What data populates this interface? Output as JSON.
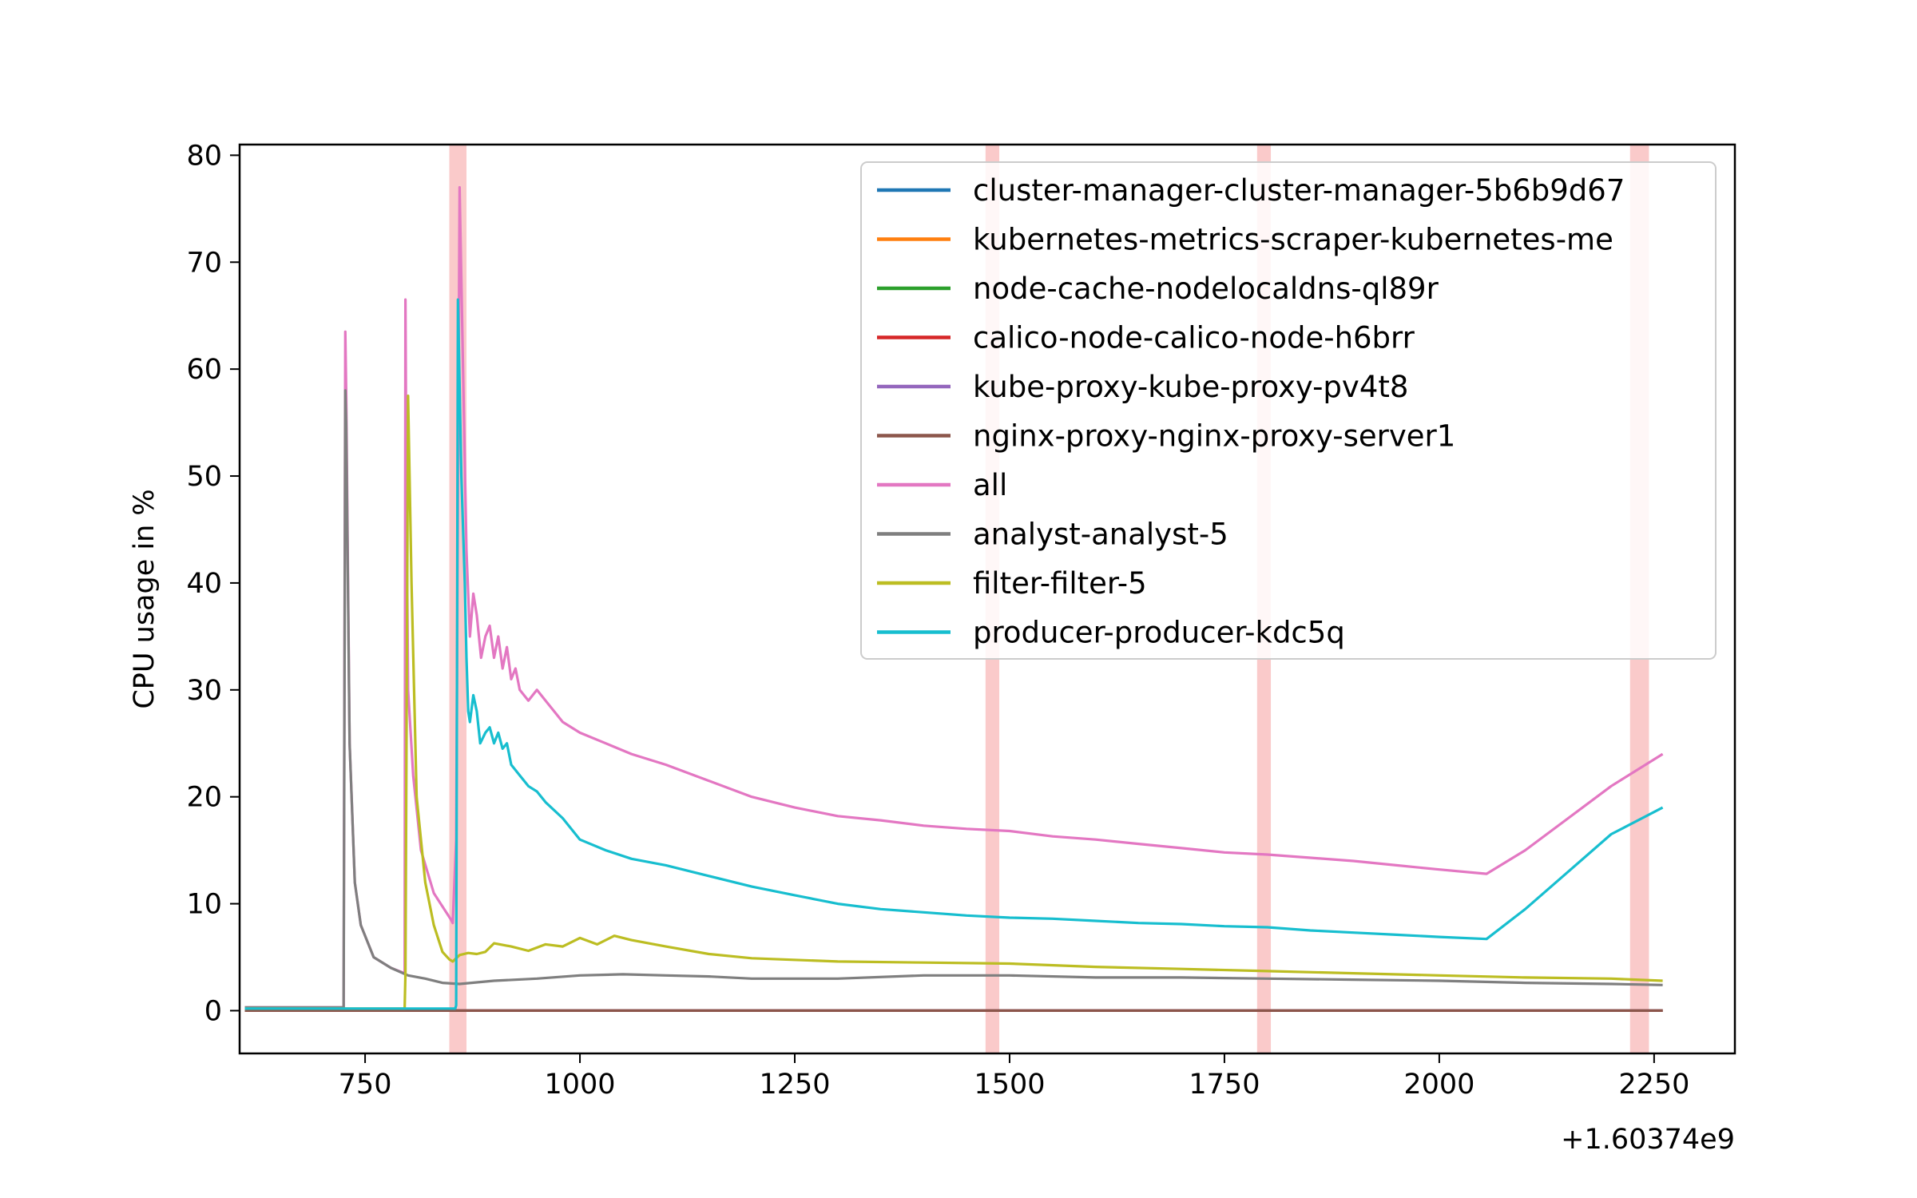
{
  "chart_data": {
    "type": "line",
    "title": "",
    "xlabel": "",
    "ylabel": "CPU usage in %",
    "x_offset_label": "+1.60374e9",
    "xlim": [
      604,
      2344
    ],
    "ylim": [
      -4,
      81
    ],
    "xticks": [
      750,
      1000,
      1250,
      1500,
      1750,
      2000,
      2250
    ],
    "yticks": [
      0,
      10,
      20,
      30,
      40,
      50,
      60,
      70,
      80
    ],
    "grid": false,
    "legend_position": "upper right",
    "highlight_color": "#f7a6a6",
    "highlight_bands": [
      [
        848,
        868
      ],
      [
        1472,
        1488
      ],
      [
        1788,
        1804
      ],
      [
        2222,
        2244
      ]
    ],
    "series": [
      {
        "name": "cluster-manager-cluster-manager-5b6b9d67",
        "color": "#1f77b4",
        "x": [
          610,
          2260
        ],
        "y": [
          0.0,
          0.0
        ]
      },
      {
        "name": "kubernetes-metrics-scraper-kubernetes-me",
        "color": "#ff7f0e",
        "x": [
          610,
          2260
        ],
        "y": [
          0.0,
          0.0
        ]
      },
      {
        "name": "node-cache-nodelocaldns-ql89r",
        "color": "#2ca02c",
        "x": [
          610,
          2260
        ],
        "y": [
          0.0,
          0.0
        ]
      },
      {
        "name": "calico-node-calico-node-h6brr",
        "color": "#d62728",
        "x": [
          610,
          2260
        ],
        "y": [
          0.0,
          0.0
        ]
      },
      {
        "name": "kube-proxy-kube-proxy-pv4t8",
        "color": "#9467bd",
        "x": [
          610,
          2260
        ],
        "y": [
          0.0,
          0.0
        ]
      },
      {
        "name": "nginx-proxy-nginx-proxy-server1",
        "color": "#8c564b",
        "x": [
          610,
          2260
        ],
        "y": [
          0.0,
          0.0
        ]
      },
      {
        "name": "all",
        "color": "#e377c2",
        "x": [
          610,
          725,
          727,
          728,
          732,
          738,
          745,
          760,
          780,
          796,
          797,
          798,
          800,
          806,
          815,
          830,
          850,
          852,
          856,
          860,
          864,
          868,
          872,
          876,
          880,
          885,
          890,
          895,
          900,
          905,
          910,
          915,
          920,
          925,
          930,
          940,
          950,
          960,
          980,
          1000,
          1030,
          1060,
          1100,
          1150,
          1200,
          1250,
          1300,
          1350,
          1400,
          1450,
          1500,
          1550,
          1600,
          1650,
          1700,
          1750,
          1800,
          1850,
          1900,
          1950,
          2000,
          2055,
          2100,
          2150,
          2200,
          2260
        ],
        "y": [
          0.3,
          0.3,
          63.5,
          58,
          25,
          12,
          8,
          5,
          4,
          3.5,
          66.5,
          50,
          30,
          22,
          15,
          11,
          8.5,
          8.2,
          16,
          77,
          60,
          43,
          35,
          39,
          37,
          33,
          35,
          36,
          33,
          35,
          32,
          34,
          31,
          32,
          30,
          29,
          30,
          29,
          27,
          26,
          25,
          24,
          23,
          21.5,
          20,
          19,
          18.2,
          17.8,
          17.3,
          17,
          16.8,
          16.3,
          16,
          15.6,
          15.2,
          14.8,
          14.6,
          14.3,
          14,
          13.6,
          13.2,
          12.8,
          15,
          18,
          21,
          24
        ]
      },
      {
        "name": "analyst-analyst-5",
        "color": "#7f7f7f",
        "x": [
          610,
          725,
          727,
          728,
          732,
          738,
          745,
          760,
          780,
          800,
          820,
          840,
          860,
          900,
          950,
          1000,
          1050,
          1100,
          1150,
          1200,
          1300,
          1400,
          1500,
          1600,
          1700,
          1800,
          1900,
          2000,
          2100,
          2200,
          2260
        ],
        "y": [
          0.3,
          0.3,
          58,
          55,
          25,
          12,
          8,
          5,
          4,
          3.3,
          3,
          2.6,
          2.5,
          2.8,
          3,
          3.3,
          3.4,
          3.3,
          3.2,
          3.0,
          3.0,
          3.3,
          3.3,
          3.1,
          3.1,
          3.0,
          2.9,
          2.8,
          2.6,
          2.5,
          2.4
        ]
      },
      {
        "name": "filter-filter-5",
        "color": "#bcbd22",
        "x": [
          610,
          796,
          797,
          800,
          804,
          810,
          820,
          830,
          840,
          848,
          852,
          860,
          870,
          880,
          890,
          900,
          920,
          940,
          960,
          980,
          1000,
          1020,
          1040,
          1060,
          1100,
          1150,
          1200,
          1300,
          1400,
          1500,
          1600,
          1700,
          1800,
          1900,
          2000,
          2100,
          2200,
          2260
        ],
        "y": [
          0.2,
          0.2,
          3.5,
          57.5,
          40,
          20,
          12,
          8,
          5.5,
          4.8,
          4.6,
          5.2,
          5.4,
          5.3,
          5.5,
          6.3,
          6.0,
          5.6,
          6.2,
          6.0,
          6.8,
          6.2,
          7.0,
          6.6,
          6.0,
          5.3,
          4.9,
          4.6,
          4.5,
          4.4,
          4.1,
          3.9,
          3.7,
          3.5,
          3.3,
          3.1,
          3.0,
          2.8
        ]
      },
      {
        "name": "producer-producer-kdc5q",
        "color": "#17becf",
        "x": [
          610,
          855,
          856,
          858,
          862,
          866,
          868,
          870,
          872,
          876,
          880,
          884,
          890,
          895,
          900,
          905,
          910,
          915,
          920,
          925,
          930,
          940,
          950,
          960,
          980,
          1000,
          1030,
          1060,
          1100,
          1150,
          1200,
          1250,
          1300,
          1350,
          1400,
          1450,
          1500,
          1550,
          1600,
          1650,
          1700,
          1750,
          1800,
          1850,
          1900,
          1950,
          2000,
          2055,
          2100,
          2150,
          2200,
          2260
        ],
        "y": [
          0.2,
          0.2,
          0.5,
          66.5,
          50,
          40,
          33,
          28,
          27,
          29.5,
          28,
          25,
          26,
          26.5,
          25,
          26,
          24.5,
          25,
          23,
          22.5,
          22,
          21,
          20.5,
          19.5,
          18,
          16,
          15,
          14.2,
          13.6,
          12.6,
          11.6,
          10.8,
          10,
          9.5,
          9.2,
          8.9,
          8.7,
          8.6,
          8.4,
          8.2,
          8.1,
          7.9,
          7.8,
          7.5,
          7.3,
          7.1,
          6.9,
          6.7,
          9.5,
          13,
          16.5,
          19
        ]
      }
    ]
  }
}
